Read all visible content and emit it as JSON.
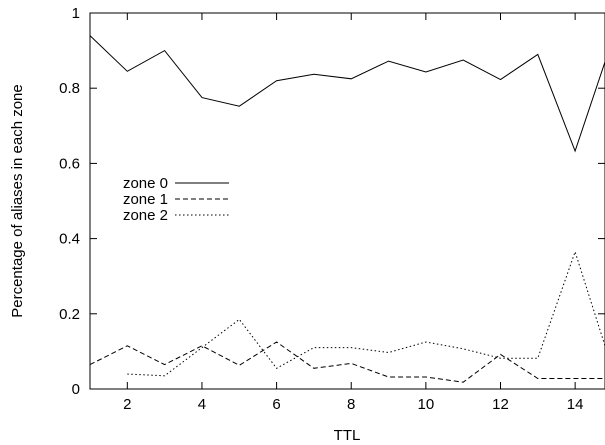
{
  "chart_data": {
    "type": "line",
    "title": "",
    "xlabel": "TTL",
    "ylabel": "Percentage of aliases in each zone",
    "xlim": [
      1,
      14.8
    ],
    "ylim": [
      0,
      1
    ],
    "xticks": [
      2,
      4,
      6,
      8,
      10,
      12,
      14
    ],
    "yticks": [
      0,
      0.2,
      0.4,
      0.6,
      0.8,
      1
    ],
    "ytick_labels": [
      "0",
      "0.2",
      "0.4",
      "0.6",
      "0.8",
      "1"
    ],
    "grid": false,
    "legend_position": "middle-left",
    "series": [
      {
        "name": "zone 0",
        "style": "solid",
        "x": [
          1,
          2,
          3,
          4,
          5,
          6,
          7,
          8,
          9,
          10,
          11,
          12,
          13,
          14,
          14.8
        ],
        "y": [
          0.94,
          0.845,
          0.9,
          0.775,
          0.752,
          0.82,
          0.837,
          0.825,
          0.872,
          0.843,
          0.875,
          0.823,
          0.89,
          0.633,
          0.87
        ]
      },
      {
        "name": "zone 1",
        "style": "dashed",
        "x": [
          1,
          2,
          3,
          4,
          5,
          6,
          7,
          8,
          9,
          10,
          11,
          12,
          13,
          14,
          14.8
        ],
        "y": [
          0.065,
          0.115,
          0.065,
          0.115,
          0.063,
          0.125,
          0.055,
          0.068,
          0.032,
          0.032,
          0.018,
          0.092,
          0.028,
          0.028,
          0.028
        ]
      },
      {
        "name": "zone 2",
        "style": "dotted",
        "x": [
          2,
          3,
          4,
          5,
          6,
          7,
          8,
          9,
          10,
          11,
          12,
          13,
          14,
          14.8
        ],
        "y": [
          0.04,
          0.035,
          0.11,
          0.185,
          0.055,
          0.11,
          0.11,
          0.097,
          0.125,
          0.107,
          0.082,
          0.082,
          0.365,
          0.115
        ]
      }
    ]
  }
}
